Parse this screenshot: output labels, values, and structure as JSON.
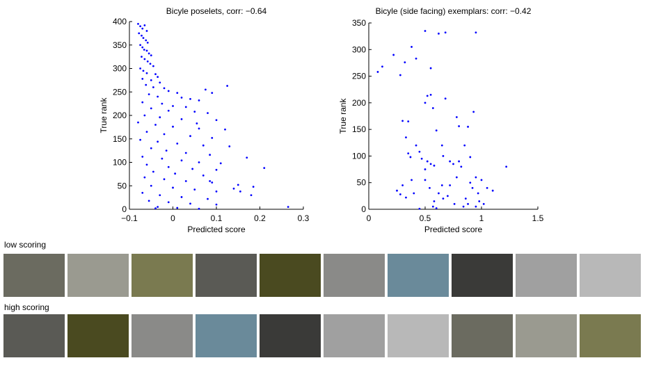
{
  "chart_data": [
    {
      "type": "scatter",
      "title": "Bicyle poselets, corr: −0.64",
      "xlabel": "Predicted score",
      "ylabel": "True rank",
      "color": "#0000ff",
      "xlim": [
        -0.1,
        0.3
      ],
      "ylim": [
        0,
        400
      ],
      "xticks": [
        {
          "value": -0.1,
          "label": "−0.1"
        },
        0,
        0.1,
        0.2,
        0.3
      ],
      "yticks": [
        0,
        50,
        100,
        150,
        200,
        250,
        300,
        350,
        400
      ],
      "x": [
        -0.08,
        -0.075,
        -0.07,
        -0.065,
        -0.06,
        -0.078,
        -0.072,
        -0.068,
        -0.062,
        -0.058,
        -0.075,
        -0.07,
        -0.066,
        -0.06,
        -0.055,
        -0.05,
        -0.072,
        -0.065,
        -0.058,
        -0.052,
        -0.045,
        -0.075,
        -0.068,
        -0.06,
        -0.04,
        -0.035,
        -0.07,
        -0.05,
        -0.03,
        -0.062,
        -0.045,
        -0.02,
        -0.01,
        0.01,
        -0.055,
        -0.035,
        0.02,
        0.04,
        0.06,
        -0.07,
        -0.025,
        0.0,
        0.03,
        -0.05,
        -0.01,
        0.05,
        0.08,
        -0.065,
        -0.03,
        0.02,
        0.1,
        -0.08,
        -0.04,
        0.0,
        0.06,
        0.12,
        -0.06,
        -0.02,
        0.04,
        0.09,
        -0.075,
        -0.035,
        0.01,
        0.07,
        0.13,
        -0.05,
        -0.015,
        0.03,
        0.085,
        -0.07,
        -0.025,
        0.02,
        0.06,
        0.11,
        0.17,
        -0.06,
        -0.01,
        0.045,
        0.1,
        0.21,
        -0.045,
        0.005,
        0.07,
        -0.065,
        -0.02,
        0.03,
        0.09,
        0.15,
        -0.05,
        0.0,
        0.05,
        0.1,
        0.14,
        0.185,
        -0.07,
        -0.03,
        0.02,
        0.08,
        0.18,
        -0.055,
        -0.01,
        0.04,
        0.1,
        -0.035,
        0.265,
        -0.04,
        0.01,
        0.06,
        0.125,
        0.09,
        0.075,
        0.055,
        0.155,
        0.085
      ],
      "values": [
        395,
        390,
        385,
        392,
        380,
        375,
        370,
        365,
        360,
        355,
        350,
        345,
        340,
        338,
        332,
        328,
        325,
        320,
        315,
        310,
        305,
        300,
        295,
        290,
        288,
        282,
        278,
        275,
        270,
        265,
        260,
        258,
        252,
        248,
        245,
        240,
        238,
        235,
        232,
        228,
        225,
        220,
        218,
        215,
        210,
        208,
        205,
        200,
        196,
        192,
        190,
        185,
        180,
        176,
        172,
        170,
        165,
        160,
        156,
        152,
        148,
        144,
        140,
        136,
        134,
        130,
        125,
        120,
        116,
        112,
        108,
        104,
        100,
        98,
        110,
        95,
        90,
        86,
        84,
        88,
        80,
        76,
        72,
        68,
        64,
        60,
        57,
        52,
        50,
        46,
        42,
        38,
        44,
        48,
        35,
        30,
        26,
        22,
        30,
        18,
        15,
        12,
        10,
        5,
        5,
        2,
        3,
        1,
        263,
        248,
        255,
        183,
        38,
        60
      ]
    },
    {
      "type": "scatter",
      "title": "Bicyle (side facing) exemplars: corr: −0.42",
      "xlabel": "Predicted score",
      "ylabel": "True rank",
      "color": "#0000ff",
      "xlim": [
        0,
        1.5
      ],
      "ylim": [
        0,
        350
      ],
      "xticks": [
        0,
        0.5,
        1,
        1.5
      ],
      "yticks": [
        0,
        50,
        100,
        150,
        200,
        250,
        300,
        350
      ],
      "x": [
        0.08,
        0.12,
        0.22,
        0.28,
        0.32,
        0.38,
        0.42,
        0.5,
        0.55,
        0.62,
        0.68,
        0.95,
        0.5,
        0.55,
        0.52,
        0.57,
        0.6,
        0.68,
        0.78,
        0.8,
        0.88,
        0.93,
        0.3,
        0.35,
        0.33,
        0.35,
        0.37,
        0.3,
        0.28,
        0.25,
        0.33,
        0.4,
        0.38,
        0.42,
        0.45,
        0.47,
        0.5,
        0.52,
        0.55,
        0.58,
        0.5,
        0.54,
        0.57,
        0.58,
        0.62,
        0.65,
        0.66,
        0.7,
        0.72,
        0.75,
        0.76,
        0.78,
        0.8,
        0.82,
        0.84,
        0.86,
        0.88,
        0.9,
        0.92,
        0.95,
        0.97,
        0.98,
        1.0,
        1.02,
        1.05,
        1.1,
        1.22,
        0.45,
        0.6,
        0.66,
        0.72,
        0.85,
        0.65,
        0.95,
        0.9
      ],
      "values": [
        258,
        268,
        290,
        252,
        276,
        305,
        283,
        335,
        265,
        330,
        332,
        332,
        200,
        215,
        213,
        190,
        148,
        208,
        173,
        156,
        155,
        183,
        166,
        165,
        135,
        105,
        98,
        45,
        28,
        35,
        22,
        30,
        55,
        120,
        108,
        95,
        75,
        90,
        85,
        82,
        55,
        40,
        5,
        15,
        30,
        120,
        20,
        25,
        45,
        85,
        10,
        60,
        90,
        80,
        5,
        20,
        10,
        50,
        40,
        60,
        30,
        15,
        55,
        10,
        40,
        35,
        80,
        1,
        2,
        100,
        90,
        120,
        45,
        5,
        98
      ]
    }
  ],
  "image_rows": [
    {
      "label": "low scoring"
    },
    {
      "label": "high scoring"
    }
  ]
}
